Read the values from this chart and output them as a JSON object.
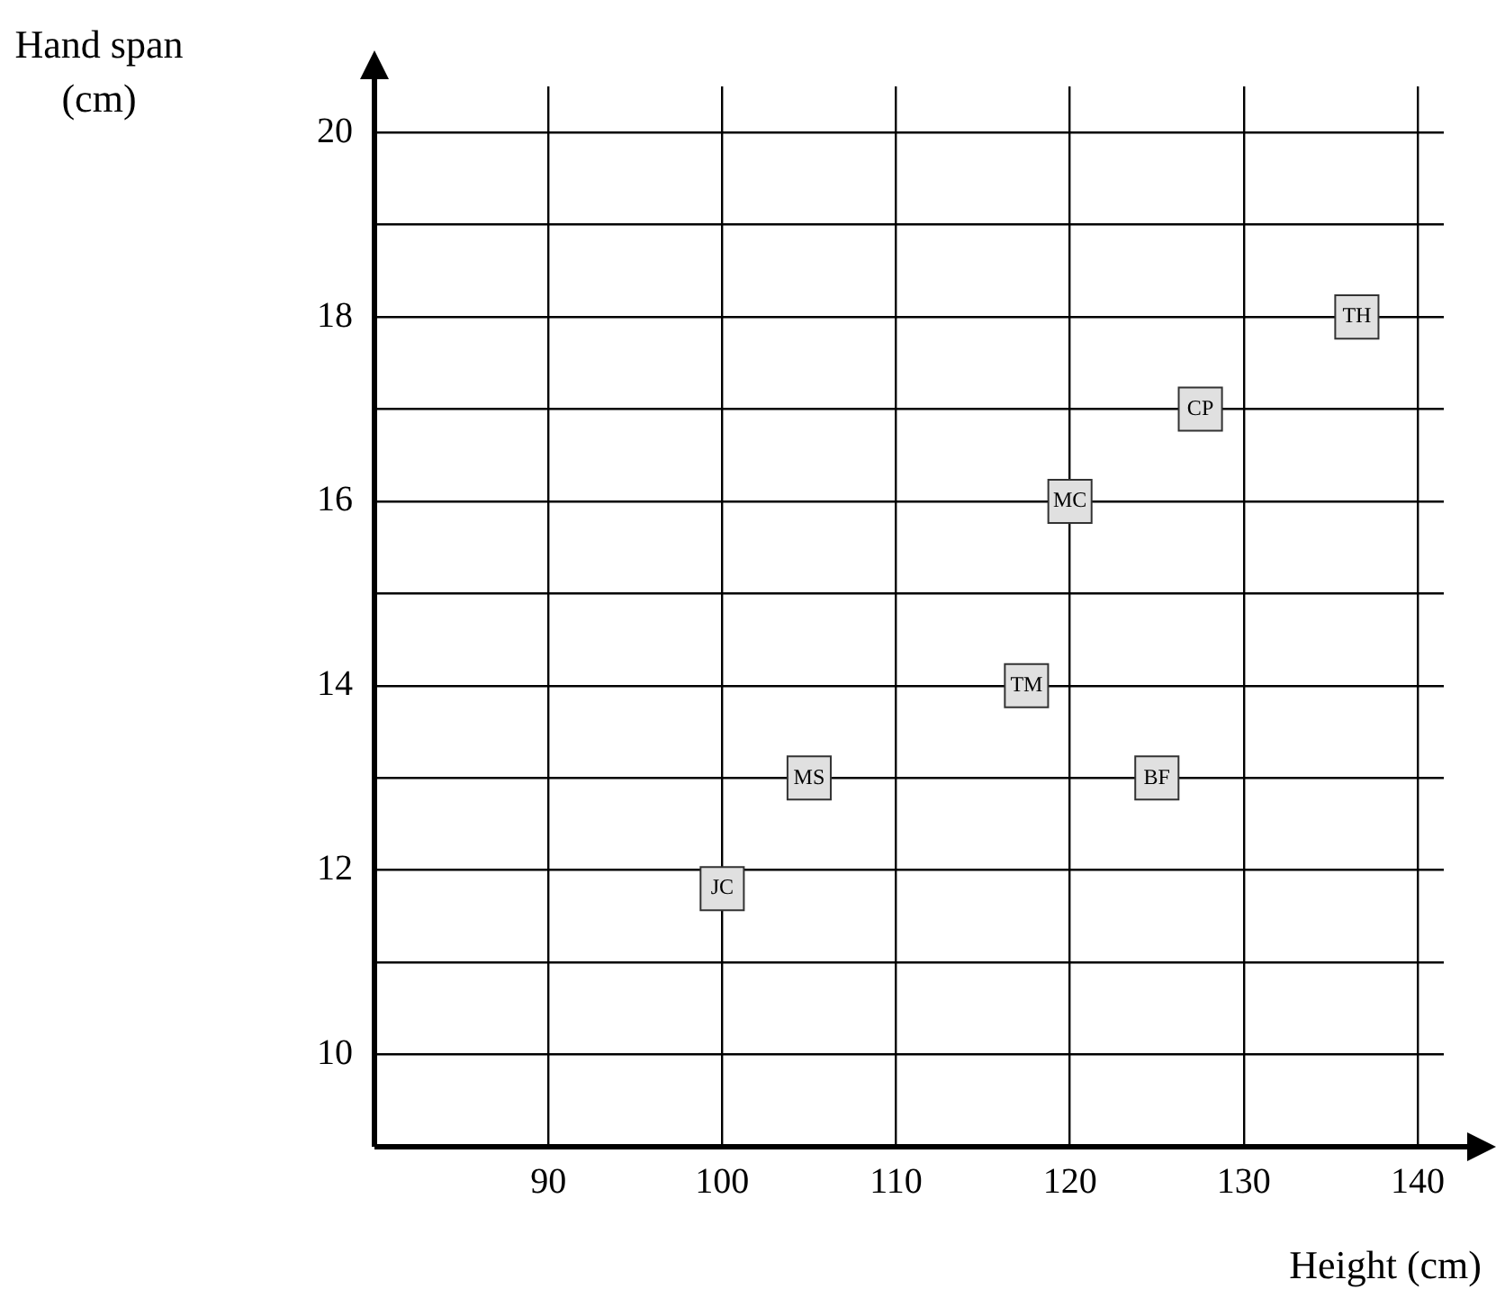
{
  "chart_data": {
    "type": "scatter",
    "xlabel": "Height (cm)",
    "ylabel": "Hand span (cm)",
    "x": [
      100,
      105,
      117.5,
      125,
      120,
      127.5,
      136.5
    ],
    "series": [
      {
        "color": "#e0e0e0",
        "values": [
          11.8,
          13,
          14,
          13,
          16,
          17,
          18
        ]
      }
    ],
    "marker": "square",
    "grid": true,
    "legend": false,
    "xlim": [
      80,
      141.5
    ],
    "xticks": [
      90,
      100,
      110,
      120,
      130,
      140
    ],
    "ylim": [
      9,
      20.5
    ],
    "yticks": [
      10,
      {
        "value": 11,
        "label": null
      },
      12,
      {
        "value": 13,
        "label": null
      },
      14,
      {
        "value": 15,
        "label": null
      },
      16,
      {
        "value": 17,
        "label": null
      },
      18,
      {
        "value": 19,
        "label": null
      },
      20
    ],
    "annotations": [
      {
        "text": "JC",
        "x": 100,
        "y": 11.8
      },
      {
        "text": "MS",
        "x": 105,
        "y": 13
      },
      {
        "text": "TM",
        "x": 117.5,
        "y": 14
      },
      {
        "text": "BF",
        "x": 125,
        "y": 13
      },
      {
        "text": "MC",
        "x": 120,
        "y": 16
      },
      {
        "text": "CP",
        "x": 127.5,
        "y": 17
      },
      {
        "text": "TH",
        "x": 136.5,
        "y": 18
      }
    ]
  }
}
